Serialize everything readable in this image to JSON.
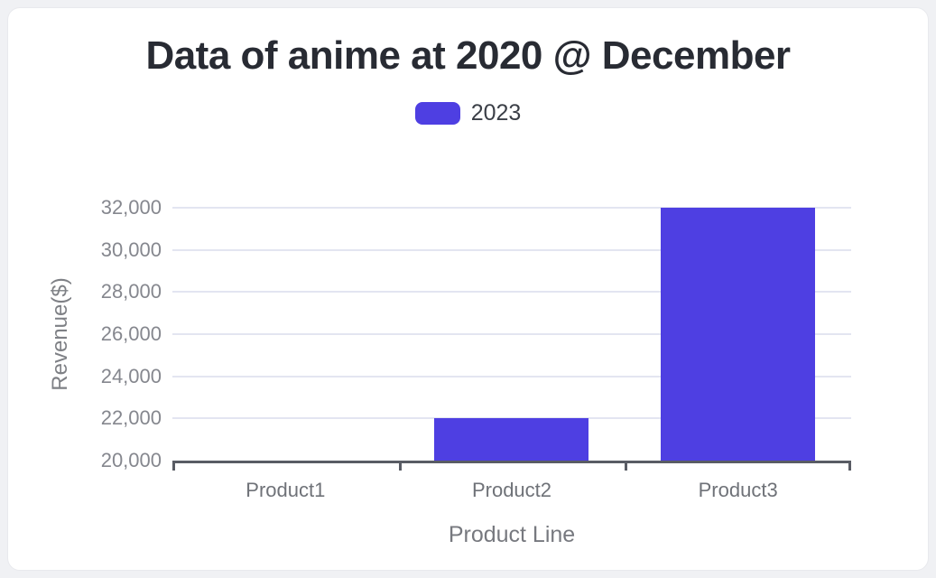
{
  "page": {
    "background": "#f0f1f4"
  },
  "card": {
    "background": "#ffffff",
    "border_color": "#e8e9ed"
  },
  "chart_data": {
    "type": "bar",
    "title": "Data of anime at 2020 @ December",
    "xlabel": "Product Line",
    "ylabel": "Revenue($)",
    "categories": [
      "Product1",
      "Product2",
      "Product3"
    ],
    "series": [
      {
        "name": "2023",
        "color": "#4e3fe2",
        "values": [
          20000,
          22000,
          32000
        ]
      }
    ],
    "ylim": [
      20000,
      32000
    ],
    "ytick_step": 2000,
    "ytick_labels": [
      "20,000",
      "22,000",
      "24,000",
      "26,000",
      "28,000",
      "30,000",
      "32,000"
    ],
    "grid": true,
    "legend_position": "top"
  },
  "colors": {
    "bar": "#4e3fe2",
    "gridline": "#e3e5f1",
    "axis_line": "#595c64",
    "y_tick_text": "#85878e",
    "category_text": "#6f7278",
    "axis_title_text": "#77797f",
    "title_text": "#282b33",
    "legend_text": "#3b3f47"
  }
}
